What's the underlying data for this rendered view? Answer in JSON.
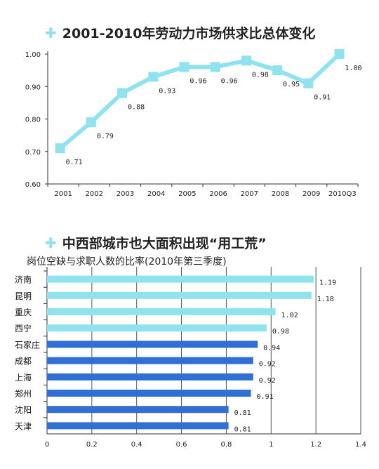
{
  "panel1": {
    "title": "2001-2010年劳动力市场供求比总体变化"
  },
  "panel2": {
    "title": "中西部城市也大面积出现“用工荒”",
    "subtitle": "岗位空缺与求职人数的比率(2010年第三季度)"
  },
  "colors": {
    "line": "#8fe3ee",
    "bar_light": "#8fe3ee",
    "bar_dark": "#2f6fd6",
    "plus": "#8ee0ea"
  },
  "chart_data": [
    {
      "type": "line",
      "x": [
        "2001",
        "2002",
        "2003",
        "2004",
        "2005",
        "2006",
        "2007",
        "2008",
        "2009",
        "2010Q3"
      ],
      "series": [
        {
          "values": [
            0.71,
            0.79,
            0.88,
            0.93,
            0.96,
            0.96,
            0.98,
            0.95,
            0.91,
            1.0
          ]
        }
      ],
      "data_labels": [
        "0.71",
        "0.79",
        "0.88",
        "0.93",
        "0.96",
        "0.96",
        "0.98",
        "0.95",
        "0.91",
        "1.00"
      ],
      "y_ticks": [
        "0.60",
        "0.70",
        "0.80",
        "0.90",
        "1.00"
      ],
      "ylim": [
        0.6,
        1.0
      ],
      "grid": false
    },
    {
      "type": "bar",
      "orientation": "horizontal",
      "categories": [
        "济南",
        "昆明",
        "重庆",
        "西宁",
        "石家庄",
        "成都",
        "上海",
        "郑州",
        "沈阳",
        "天津"
      ],
      "values": [
        1.19,
        1.18,
        1.02,
        0.98,
        0.94,
        0.92,
        0.92,
        0.91,
        0.81,
        0.81
      ],
      "data_labels": [
        "1.19",
        "1.18",
        "1.02",
        "0.98",
        "0.94",
        "0.92",
        "0.92",
        "0.91",
        "0.81",
        "0.81"
      ],
      "bar_tone": [
        "light",
        "light",
        "light",
        "light",
        "dark",
        "dark",
        "dark",
        "dark",
        "dark",
        "dark"
      ],
      "x_ticks": [
        "0",
        "0.2",
        "0.4",
        "0.6",
        "0.8",
        "1",
        "1.2",
        "1.4"
      ],
      "xlim": [
        0,
        1.4
      ],
      "grid": true
    }
  ]
}
